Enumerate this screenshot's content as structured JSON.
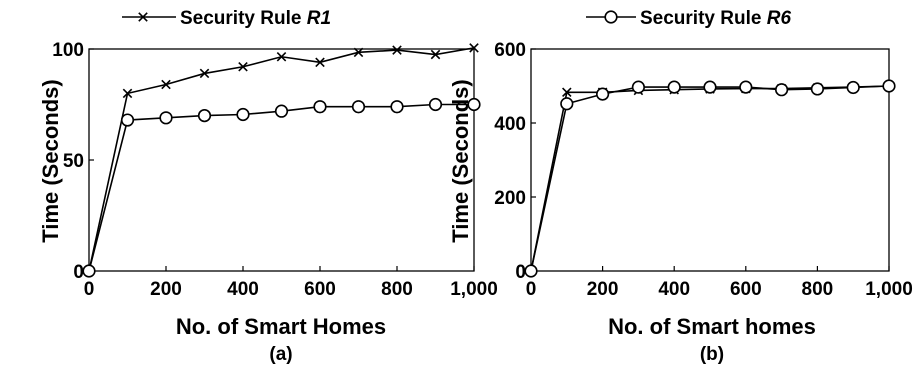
{
  "chart_data": [
    {
      "type": "line",
      "panel_label": "(a)",
      "xlabel": "No. of Smart Homes",
      "ylabel": "Time (Seconds)",
      "xlim": [
        0,
        1000
      ],
      "ylim": [
        0,
        100
      ],
      "x_ticks": [
        0,
        200,
        400,
        600,
        800,
        1000
      ],
      "x_tick_labels": [
        "0",
        "200",
        "400",
        "600",
        "800",
        "1,000"
      ],
      "y_ticks": [
        0,
        50,
        100
      ],
      "y_tick_labels": [
        "0",
        "50",
        "100"
      ],
      "grid": false,
      "x": [
        0,
        100,
        200,
        300,
        400,
        500,
        600,
        700,
        800,
        900,
        1000
      ],
      "legend": {
        "prefix": "Security Rule ",
        "emph": "R1",
        "marker": "x"
      },
      "series": [
        {
          "marker": "x",
          "values": [
            0,
            80,
            84,
            89,
            92,
            96.5,
            94,
            98.5,
            99.5,
            97.5,
            100.5
          ]
        },
        {
          "marker": "o",
          "values": [
            0,
            68,
            69,
            70,
            70.5,
            72,
            74,
            74,
            74,
            75,
            75
          ]
        }
      ]
    },
    {
      "type": "line",
      "panel_label": "(b)",
      "xlabel": "No. of Smart homes",
      "ylabel": "Time (Seconds)",
      "xlim": [
        0,
        1000
      ],
      "ylim": [
        0,
        600
      ],
      "x_ticks": [
        0,
        200,
        400,
        600,
        800,
        1000
      ],
      "x_tick_labels": [
        "0",
        "200",
        "400",
        "600",
        "800",
        "1,000"
      ],
      "y_ticks": [
        0,
        200,
        400,
        600
      ],
      "y_tick_labels": [
        "0",
        "200",
        "400",
        "600"
      ],
      "grid": false,
      "x": [
        0,
        100,
        200,
        300,
        400,
        500,
        600,
        700,
        800,
        900,
        1000
      ],
      "legend": {
        "prefix": "Security Rule ",
        "emph": "R6",
        "marker": "o"
      },
      "series": [
        {
          "marker": "x",
          "values": [
            0,
            483,
            483,
            488,
            490,
            492,
            493,
            493,
            495,
            497,
            500
          ]
        },
        {
          "marker": "o",
          "values": [
            0,
            452,
            478,
            497,
            497,
            497,
            497,
            490,
            492,
            496,
            500
          ]
        }
      ]
    }
  ]
}
